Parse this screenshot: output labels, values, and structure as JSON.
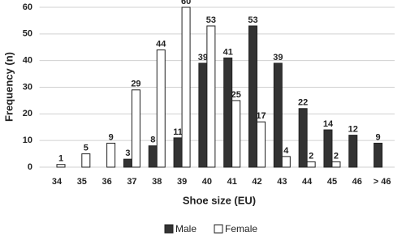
{
  "chart_data": {
    "type": "bar",
    "x_label": "Shoe size (EU)",
    "y_label": "Frequency (n)",
    "categories": [
      "34",
      "35",
      "36",
      "37",
      "38",
      "39",
      "40",
      "41",
      "42",
      "43",
      "44",
      "45",
      "46",
      "> 46"
    ],
    "series": [
      {
        "name": "Male",
        "color": "#333333",
        "values": [
          null,
          null,
          null,
          3,
          8,
          11,
          39,
          41,
          53,
          39,
          22,
          14,
          12,
          9
        ]
      },
      {
        "name": "Female",
        "color": "#ffffff",
        "values": [
          1,
          5,
          9,
          29,
          44,
          60,
          53,
          25,
          17,
          4,
          2,
          2,
          null,
          null
        ]
      }
    ],
    "ylim": [
      0,
      60
    ],
    "yticks": [
      0,
      10,
      20,
      30,
      40,
      50,
      60
    ],
    "grid": true,
    "legend": "bottom"
  }
}
